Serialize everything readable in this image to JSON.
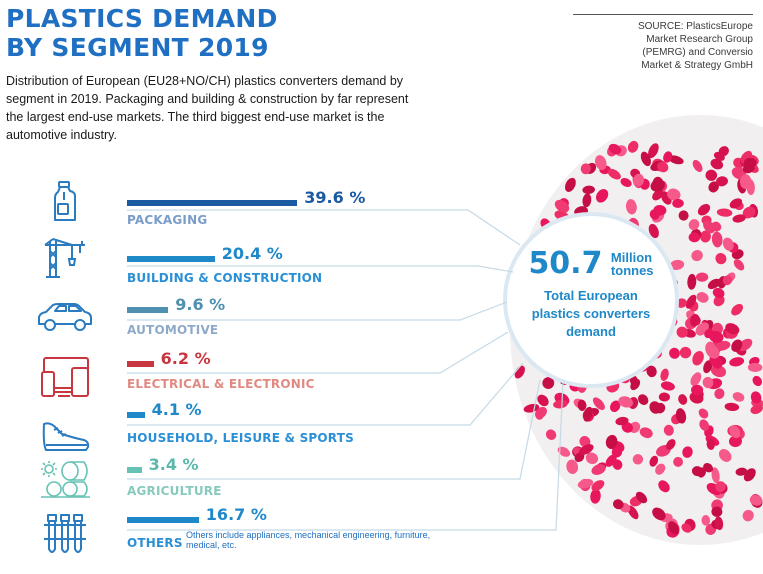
{
  "header": {
    "title_line1": "PLASTICS DEMAND",
    "title_line2": "BY SEGMENT 2019",
    "description": "Distribution of European (EU28+NO/CH) plastics converters demand by segment in 2019. Packaging and building & construction by far represent the largest end-use markets. The third biggest end-use market is the automotive industry.",
    "source_line1": "SOURCE: PlasticsEurope",
    "source_line2": "Market Research Group",
    "source_line3": "(PEMRG) and Conversio",
    "source_line4": "Market & Strategy GmbH"
  },
  "total": {
    "value": "50.7",
    "unit_line1": "Million",
    "unit_line2": "tonnes",
    "caption_line1": "Total European",
    "caption_line2": "plastics converters",
    "caption_line3": "demand"
  },
  "others_note": "Others include appliances, mechanical engineering, furniture, medical, etc.",
  "chart_data": {
    "type": "bar",
    "orientation": "horizontal",
    "value_unit": "%",
    "categories": [
      "PACKAGING",
      "BUILDING & CONSTRUCTION",
      "AUTOMOTIVE",
      "ELECTRICAL & ELECTRONIC",
      "HOUSEHOLD, LEISURE & SPORTS",
      "AGRICULTURE",
      "OTHERS"
    ],
    "values": [
      39.6,
      20.4,
      9.6,
      6.2,
      4.1,
      3.4,
      16.7
    ],
    "value_labels": [
      "39.6 %",
      "20.4 %",
      "9.6 %",
      "6.2 %",
      "4.1 %",
      "3.4 %",
      "16.7 %"
    ],
    "bar_colors": [
      "#1a5aa3",
      "#1e88c8",
      "#4f8fb0",
      "#c8363f",
      "#1e88c8",
      "#66c2b4",
      "#1e88c8"
    ],
    "value_colors": [
      "#1a5aa3",
      "#1e88c8",
      "#4f8fb0",
      "#c8363f",
      "#1e88c8",
      "#5bb8aa",
      "#1e88c8"
    ],
    "label_colors": [
      "#7a9cc9",
      "#2b8fd6",
      "#8fa9c8",
      "#e08a82",
      "#2b8fd6",
      "#88c9bd",
      "#2b8fd6"
    ],
    "icons": [
      "bottle-icon",
      "crane-icon",
      "car-icon",
      "devices-icon",
      "sneaker-icon",
      "hay-bales-icon",
      "test-tubes-icon"
    ]
  }
}
